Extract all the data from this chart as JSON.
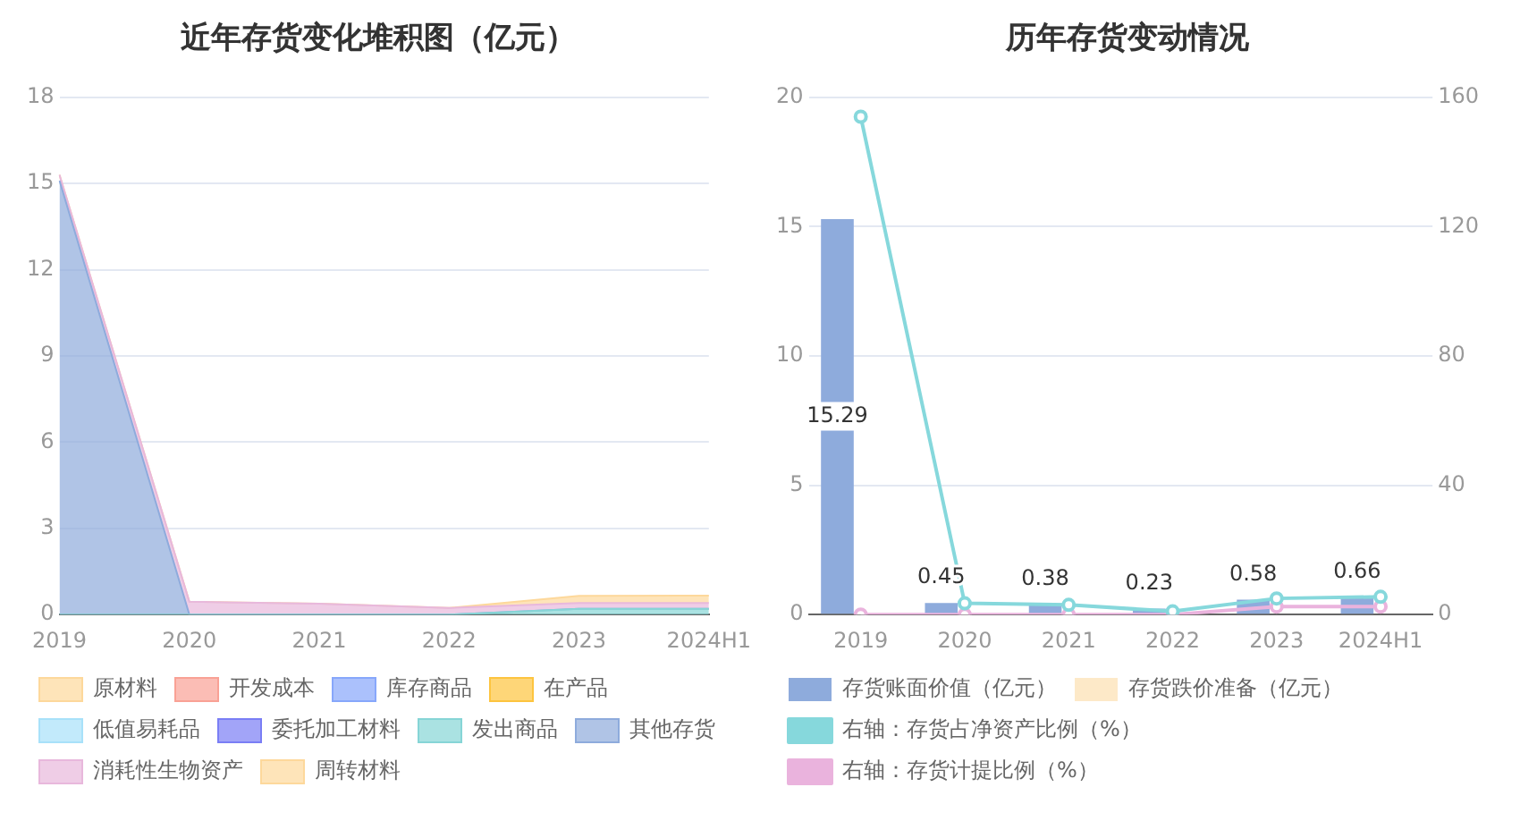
{
  "chart_data": [
    {
      "type": "area",
      "title": "近年存货变化堆积图（亿元）",
      "stacked": true,
      "grid": "y",
      "legend": "bottom",
      "marker": "none",
      "categories": [
        "2019",
        "2020",
        "2021",
        "2022",
        "2023",
        "2024H1"
      ],
      "ylim": [
        0,
        18
      ],
      "yticks": [
        0,
        3,
        6,
        9,
        12,
        15,
        18
      ],
      "series": [
        {
          "name": "原材料",
          "color": "#fdd89b",
          "values": [
            null,
            null,
            null,
            null,
            null,
            null
          ]
        },
        {
          "name": "开发成本",
          "color": "#f9a195",
          "values": [
            null,
            null,
            null,
            null,
            null,
            null
          ]
        },
        {
          "name": "库存商品",
          "color": "#87a7fb",
          "values": [
            null,
            null,
            null,
            null,
            null,
            null
          ]
        },
        {
          "name": "在产品",
          "color": "#fdc43f",
          "values": [
            null,
            null,
            null,
            null,
            null,
            null
          ]
        },
        {
          "name": "低值易耗品",
          "color": "#a8e1f9",
          "values": [
            null,
            null,
            null,
            null,
            null,
            null
          ]
        },
        {
          "name": "委托加工材料",
          "color": "#7a7ef5",
          "values": [
            null,
            null,
            null,
            null,
            null,
            null
          ]
        },
        {
          "name": "发出商品",
          "color": "#86d5d6",
          "values": [
            0,
            0,
            0,
            0,
            0.2,
            0.2
          ]
        },
        {
          "name": "其他存货",
          "color": "#8eabdc",
          "values": [
            15.1,
            0,
            0,
            0,
            0,
            0
          ]
        },
        {
          "name": "消耗性生物资产",
          "color": "#e8b8dc",
          "values": [
            0.2,
            0.45,
            0.38,
            0.23,
            0.2,
            0.2
          ]
        },
        {
          "name": "周转材料",
          "color": "#fdd89b",
          "values": [
            0,
            0,
            0,
            0,
            0.25,
            0.26
          ]
        }
      ]
    },
    {
      "type": "bar",
      "title": "历年存货变动情况",
      "grid": "y",
      "legend": "bottom",
      "marker": "circle",
      "categories": [
        "2019",
        "2020",
        "2021",
        "2022",
        "2023",
        "2024H1"
      ],
      "ylim": [
        0,
        20
      ],
      "yticks": [
        0,
        5,
        10,
        15,
        20
      ],
      "y2lim": [
        0,
        160
      ],
      "y2ticks": [
        0,
        40,
        80,
        120,
        160
      ],
      "series": [
        {
          "name": "存货账面价值（亿元）",
          "color": "#8eabdc",
          "values": [
            15.29,
            0.45,
            0.38,
            0.23,
            0.58,
            0.66
          ],
          "value_labels": [
            "15.29",
            "0.45",
            "0.38",
            "0.23",
            "0.58",
            "0.66"
          ]
        },
        {
          "name": "存货跌价准备（亿元）",
          "color": "#fde9c8",
          "values": [
            null,
            null,
            null,
            null,
            null,
            null
          ]
        },
        {
          "name": "右轴：存货占净资产比例（%）",
          "type": "line",
          "axis": "y2",
          "color": "#86d8dc",
          "values": [
            154,
            3.5,
            3,
            1,
            5,
            5.5
          ]
        },
        {
          "name": "右轴：存货计提比例（%）",
          "type": "line",
          "axis": "y2",
          "color": "#eab3dd",
          "values": [
            0,
            0,
            0,
            0,
            2.5,
            2.5
          ]
        }
      ]
    }
  ]
}
